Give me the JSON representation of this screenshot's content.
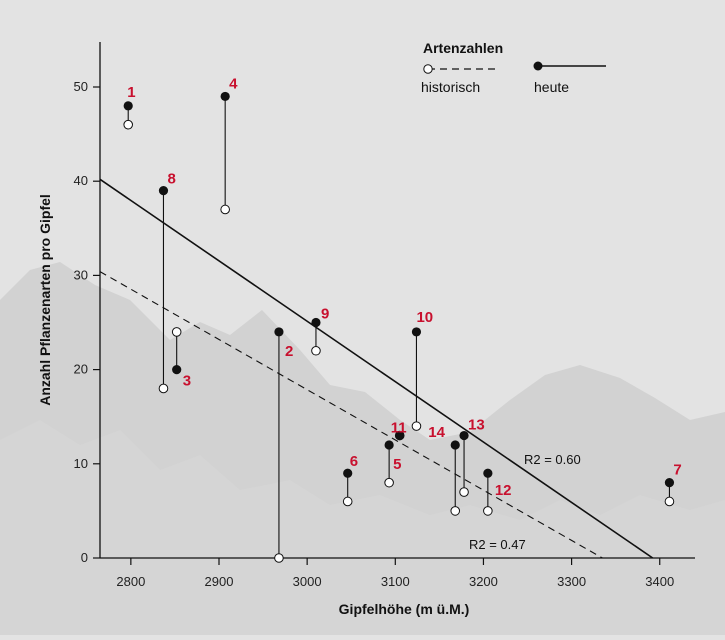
{
  "colors": {
    "background": "#e3e3e3",
    "mountain": "#c9c9c9",
    "axis": "#111111",
    "label": "#c8102e",
    "marker_today": "#111111",
    "marker_historic_fill": "#ffffff"
  },
  "chart_data": {
    "type": "scatter",
    "xlabel": "Gipfelhöhe (m ü.M.)",
    "ylabel": "Anzahl Pflanzenarten pro Gipfel",
    "xlim": [
      2765,
      3440
    ],
    "ylim": [
      0,
      55
    ],
    "xticks": [
      2800,
      2900,
      3000,
      3100,
      3200,
      3300,
      3400
    ],
    "yticks": [
      0,
      10,
      20,
      30,
      40,
      50
    ],
    "legend": {
      "title": "Artenzahlen",
      "placement": "top-right",
      "historic_label": "historisch",
      "today_label": "heute"
    },
    "summits": [
      {
        "id": "1",
        "x": 2797,
        "historic": 46,
        "today": 48
      },
      {
        "id": "2",
        "x": 2968,
        "historic": 0,
        "today": 24
      },
      {
        "id": "3",
        "x": 2852,
        "historic": 24,
        "today": 20
      },
      {
        "id": "4",
        "x": 2907,
        "historic": 37,
        "today": 49
      },
      {
        "id": "5",
        "x": 3093,
        "historic": 8,
        "today": 12
      },
      {
        "id": "6",
        "x": 3046,
        "historic": 6,
        "today": 9
      },
      {
        "id": "7",
        "x": 3411,
        "historic": 6,
        "today": 8
      },
      {
        "id": "8",
        "x": 2837,
        "historic": 18,
        "today": 39
      },
      {
        "id": "9",
        "x": 3010,
        "historic": 22,
        "today": 25
      },
      {
        "id": "10",
        "x": 3124,
        "historic": 14,
        "today": 24
      },
      {
        "id": "11",
        "x": 3105,
        "historic": 13,
        "today": 13
      },
      {
        "id": "12",
        "x": 3205,
        "historic": 5,
        "today": 9
      },
      {
        "id": "13",
        "x": 3178,
        "historic": 7,
        "today": 13
      },
      {
        "id": "14",
        "x": 3168,
        "historic": 5,
        "today": 12
      }
    ],
    "regressions": [
      {
        "series": "heute",
        "style": "solid",
        "r2_label": "R2 = 0.60",
        "x0": 2765,
        "y0": 40.2,
        "x1": 3392,
        "y1": 0
      },
      {
        "series": "historisch",
        "style": "dashed",
        "r2_label": "R2 = 0.47",
        "x0": 2765,
        "y0": 30.4,
        "x1": 3335,
        "y1": 0
      }
    ]
  }
}
